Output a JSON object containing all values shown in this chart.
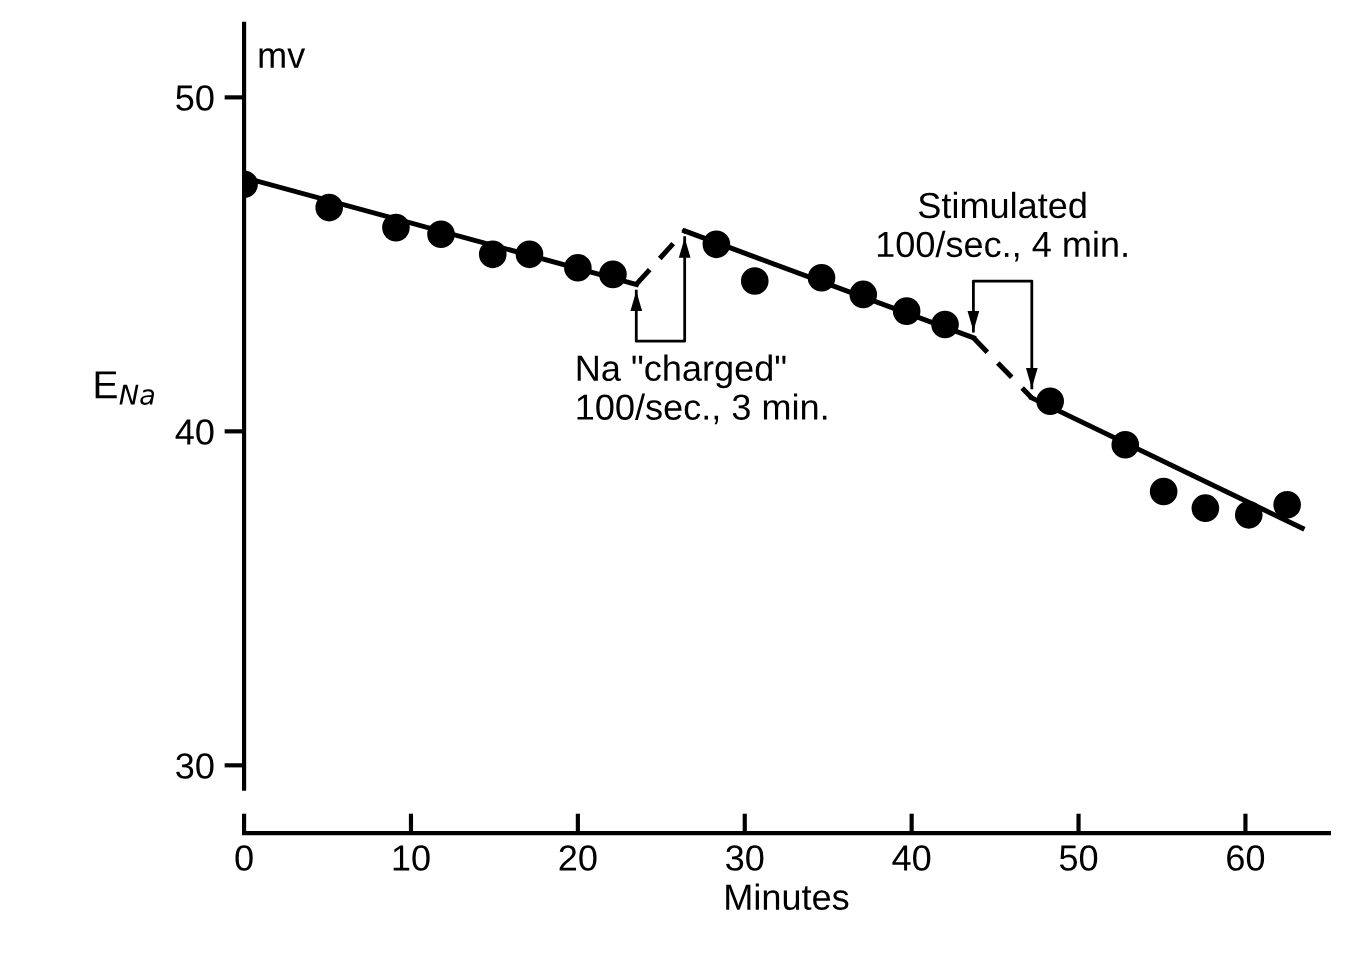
{
  "chart_data": {
    "type": "scatter",
    "xlabel": "Minutes",
    "ylabel": "E$_{Na}$",
    "annotations": [
      "mv",
      "Na \"charged\"\n100/sec., 3 min.",
      "Stimulated\n100/sec., 4 min."
    ],
    "xlim": [
      0,
      65
    ],
    "ylim": [
      29.3,
      52.2
    ],
    "xticks": [
      0,
      10,
      20,
      30,
      40,
      50,
      60
    ],
    "yticks": [
      30,
      40,
      50
    ],
    "grid": false,
    "series": [
      {
        "color": "#000000",
        "marker": "circle",
        "x": [
          0,
          5.1,
          9.1,
          11.8,
          14.9,
          17.1,
          20.0,
          22.1,
          28.3,
          30.6,
          34.6,
          37.1,
          39.7,
          42.0,
          48.3,
          52.8,
          55.1,
          57.6,
          60.2,
          62.5
        ],
        "values": [
          47.4,
          46.7,
          46.1,
          45.9,
          45.3,
          45.3,
          44.9,
          44.7,
          45.6,
          44.5,
          44.6,
          44.1,
          43.6,
          43.2,
          40.9,
          39.6,
          38.2,
          37.7,
          37.5,
          37.8
        ]
      },
      {
        "type": "line",
        "color": "#000000",
        "line_style": "solid",
        "x": [
          0,
          23.5
        ],
        "values": [
          47.6,
          44.4
        ]
      },
      {
        "type": "line",
        "color": "#000000",
        "line_style": "dashed",
        "x": [
          23.5,
          26.4
        ],
        "values": [
          44.4,
          46.0
        ]
      },
      {
        "type": "line",
        "color": "#000000",
        "line_style": "solid",
        "x": [
          26.4,
          43.7
        ],
        "values": [
          46.0,
          42.8
        ]
      },
      {
        "type": "line",
        "color": "#000000",
        "line_style": "dashed",
        "x": [
          43.7,
          47.2
        ],
        "values": [
          42.8,
          41.0
        ]
      },
      {
        "type": "line",
        "color": "#000000",
        "line_style": "solid",
        "x": [
          47.2,
          63.4
        ],
        "values": [
          41.0,
          37.1
        ]
      }
    ]
  }
}
